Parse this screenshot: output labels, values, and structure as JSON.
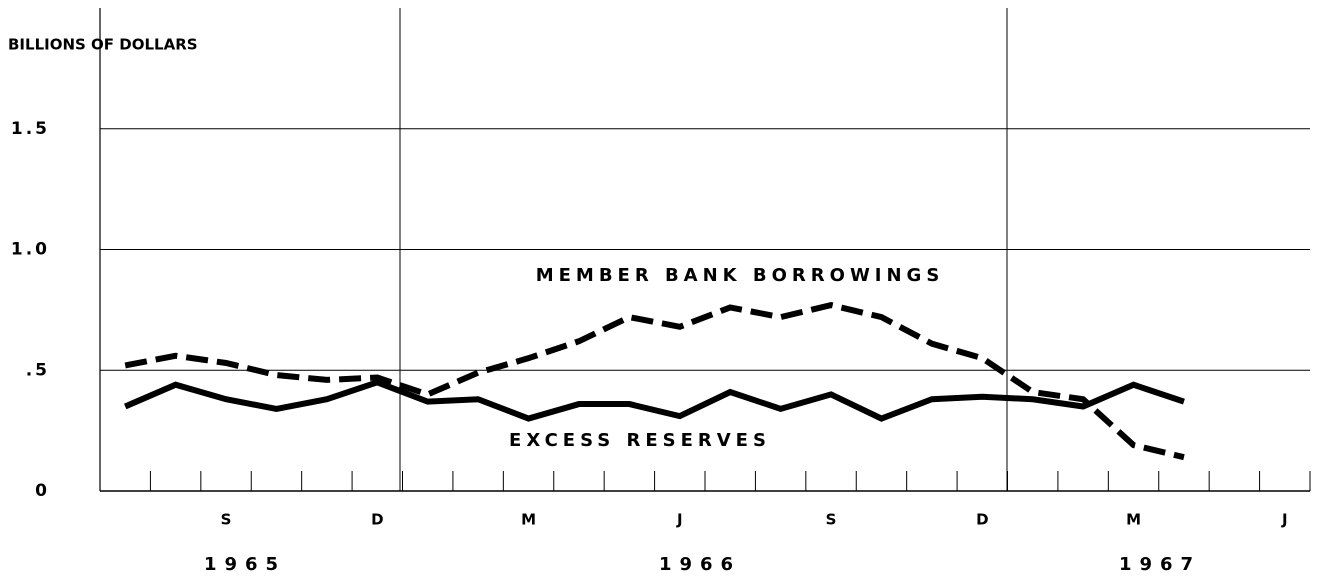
{
  "chart_data": {
    "type": "line",
    "y_axis_label": "BILLIONS OF DOLLARS",
    "categories": [
      null,
      null,
      "S",
      null,
      null,
      "D",
      null,
      null,
      "M",
      null,
      null,
      "J",
      null,
      null,
      "S",
      null,
      null,
      "D",
      null,
      null,
      "M",
      null,
      null,
      "J"
    ],
    "year_labels": [
      "1965",
      "1966",
      "1967"
    ],
    "series": [
      {
        "name": "MEMBER BANK BORROWINGS",
        "color": "#000000",
        "dash": true,
        "values": [
          0.52,
          0.56,
          0.53,
          0.48,
          0.46,
          0.47,
          0.4,
          0.49,
          0.55,
          0.62,
          0.72,
          0.68,
          0.76,
          0.72,
          0.77,
          0.72,
          0.61,
          0.55,
          0.41,
          0.38,
          0.19,
          0.14,
          null,
          null
        ]
      },
      {
        "name": "EXCESS RESERVES",
        "color": "#000000",
        "dash": false,
        "values": [
          0.35,
          0.44,
          0.38,
          0.34,
          0.38,
          0.45,
          0.37,
          0.38,
          0.3,
          0.36,
          0.36,
          0.31,
          0.41,
          0.34,
          0.4,
          0.3,
          0.38,
          0.39,
          0.38,
          0.35,
          0.44,
          0.37,
          null,
          null
        ]
      }
    ],
    "ylim": [
      0,
      2.0
    ],
    "yticks": [
      0,
      {
        "value": 0.5,
        "label": ".5"
      },
      {
        "value": 1,
        "label": "1.0"
      },
      {
        "value": 1.5,
        "label": "1.5"
      }
    ],
    "grid": true
  }
}
